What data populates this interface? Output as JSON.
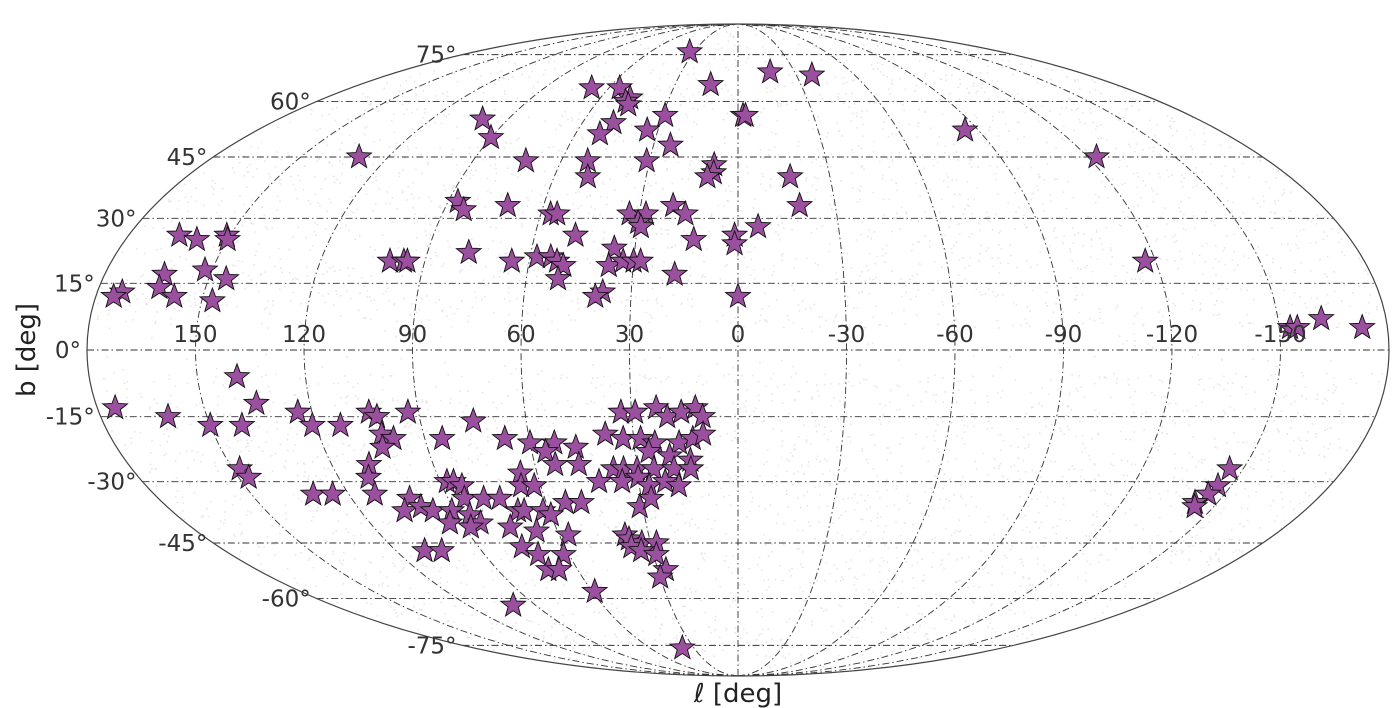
{
  "chart_data": {
    "type": "scatter",
    "projection": "mollweide",
    "xlabel": "ℓ [deg]",
    "ylabel": "b [deg]",
    "xlim": [
      180,
      -180
    ],
    "ylim": [
      -90,
      90
    ],
    "grid": true,
    "lon_ticks": [
      150,
      120,
      90,
      60,
      30,
      0,
      -30,
      -60,
      -90,
      -120,
      -150
    ],
    "lon_tick_labels": [
      "150",
      "120",
      "90",
      "60",
      "30",
      "0",
      "-30",
      "-60",
      "-90",
      "-120",
      "-150"
    ],
    "lat_ticks": [
      75,
      60,
      45,
      30,
      15,
      0,
      -15,
      -30,
      -45,
      -60,
      -75
    ],
    "lat_tick_labels": [
      "75°",
      "60°",
      "45°",
      "30°",
      "15°",
      "0°",
      "-15°",
      "-30°",
      "-45°",
      "-60°",
      "-75°"
    ],
    "colors": {
      "stars": "#9b4f9f",
      "star_edge": "#111111",
      "background_points": "#b8b8b8",
      "grid": "#333333"
    },
    "series": [
      {
        "marker": "star",
        "points": [
          [
            33,
            76
          ],
          [
            68,
            64
          ],
          [
            55,
            64
          ],
          [
            13,
            65
          ],
          [
            -17,
            69
          ],
          [
            -38,
            68
          ],
          [
            47,
            61
          ],
          [
            48,
            60
          ],
          [
            46,
            59
          ],
          [
            100,
            55
          ],
          [
            29,
            56
          ],
          [
            -2,
            56
          ],
          [
            -3,
            56
          ],
          [
            48,
            54
          ],
          [
            34,
            52
          ],
          [
            -85,
            52
          ],
          [
            90,
            50
          ],
          [
            51,
            51
          ],
          [
            24,
            48
          ],
          [
            130,
            45
          ],
          [
            72,
            44
          ],
          [
            31,
            44
          ],
          [
            51,
            44
          ],
          [
            -123,
            45
          ],
          [
            8,
            43
          ],
          [
            8,
            41
          ],
          [
            10,
            40
          ],
          [
            49,
            40
          ],
          [
            -17,
            40
          ],
          [
            -19,
            33
          ],
          [
            87,
            34
          ],
          [
            84,
            32
          ],
          [
            71,
            33
          ],
          [
            57,
            31
          ],
          [
            55,
            31
          ],
          [
            20,
            33
          ],
          [
            16,
            31
          ],
          [
            33,
            31
          ],
          [
            28,
            31
          ],
          [
            30,
            29
          ],
          [
            29,
            28
          ],
          [
            -6,
            28
          ],
          [
            48,
            26
          ],
          [
            13,
            25
          ],
          [
            1,
            26
          ],
          [
            1,
            24
          ],
          [
            165,
            26
          ],
          [
            159,
            25
          ],
          [
            151,
            26
          ],
          [
            150,
            25
          ],
          [
            36,
            23
          ],
          [
            152,
            18
          ],
          [
            78,
            22
          ],
          [
            100,
            20
          ],
          [
            96,
            20
          ],
          [
            95,
            20
          ],
          [
            65,
            20
          ],
          [
            58,
            21
          ],
          [
            54,
            21
          ],
          [
            52,
            20
          ],
          [
            50,
            19
          ],
          [
            37,
            19
          ],
          [
            33,
            20
          ],
          [
            30,
            20
          ],
          [
            28,
            20
          ],
          [
            -117,
            20
          ],
          [
            163,
            17
          ],
          [
            145,
            16
          ],
          [
            18,
            17
          ],
          [
            51,
            16
          ],
          [
            38,
            13
          ],
          [
            40,
            12
          ],
          [
            163,
            14
          ],
          [
            158,
            12
          ],
          [
            147,
            11
          ],
          [
            173,
            13
          ],
          [
            175,
            12
          ],
          [
            0,
            12
          ],
          [
            -153,
            5
          ],
          [
            -155,
            5
          ],
          [
            -162,
            7
          ],
          [
            -173,
            5
          ],
          [
            139,
            -6
          ],
          [
            135,
            -12
          ],
          [
            124,
            -14
          ],
          [
            104,
            -14
          ],
          [
            102,
            -15
          ],
          [
            93,
            -14
          ],
          [
            75,
            -16
          ],
          [
            33,
            -14
          ],
          [
            29,
            -14
          ],
          [
            23,
            -13
          ],
          [
            20,
            -15
          ],
          [
            16,
            -14
          ],
          [
            12,
            -13
          ],
          [
            10,
            -15
          ],
          [
            175,
            -13
          ],
          [
            161,
            -15
          ],
          [
            150,
            -17
          ],
          [
            141,
            -17
          ],
          [
            121,
            -17
          ],
          [
            113,
            -17
          ],
          [
            102,
            -19
          ],
          [
            99,
            -20
          ],
          [
            85,
            -20
          ],
          [
            67,
            -20
          ],
          [
            60,
            -21
          ],
          [
            53,
            -21
          ],
          [
            38,
            -19
          ],
          [
            33,
            -20
          ],
          [
            28,
            -20
          ],
          [
            24,
            -21
          ],
          [
            17,
            -21
          ],
          [
            13,
            -20
          ],
          [
            10,
            -19
          ],
          [
            103,
            -22
          ],
          [
            56,
            -23
          ],
          [
            47,
            -22
          ],
          [
            26,
            -23
          ],
          [
            20,
            -24
          ],
          [
            14,
            -25
          ],
          [
            148,
            -27
          ],
          [
            109,
            -26
          ],
          [
            65,
            -28
          ],
          [
            54,
            -26
          ],
          [
            47,
            -26
          ],
          [
            37,
            -27
          ],
          [
            34,
            -27
          ],
          [
            30,
            -27
          ],
          [
            25,
            -27
          ],
          [
            19,
            -27
          ],
          [
            14,
            -27
          ],
          [
            147,
            -29
          ],
          [
            111,
            -29
          ],
          [
            88,
            -30
          ],
          [
            86,
            -30
          ],
          [
            84,
            -31
          ],
          [
            66,
            -31
          ],
          [
            62,
            -31
          ],
          [
            42,
            -30
          ],
          [
            35,
            -30
          ],
          [
            30,
            -29
          ],
          [
            27,
            -31
          ],
          [
            22,
            -30
          ],
          [
            18,
            -31
          ],
          [
            -146,
            -27
          ],
          [
            -146,
            -31
          ],
          [
            131,
            -33
          ],
          [
            125,
            -33
          ],
          [
            112,
            -33
          ],
          [
            102,
            -34
          ],
          [
            85,
            -34
          ],
          [
            79,
            -34
          ],
          [
            74,
            -34
          ],
          [
            54,
            -35
          ],
          [
            49,
            -35
          ],
          [
            31,
            -36
          ],
          [
            27,
            -34
          ],
          [
            -145,
            -33
          ],
          [
            -143,
            -35
          ],
          [
            -144,
            -36
          ],
          [
            106,
            -37
          ],
          [
            100,
            -36
          ],
          [
            97,
            -37
          ],
          [
            91,
            -37
          ],
          [
            86,
            -38
          ],
          [
            70,
            -37
          ],
          [
            68,
            -37
          ],
          [
            62,
            -37
          ],
          [
            60,
            -38
          ],
          [
            94,
            -40
          ],
          [
            84,
            -40
          ],
          [
            75,
            -41
          ],
          [
            88,
            -41
          ],
          [
            67,
            -42
          ],
          [
            57,
            -43
          ],
          [
            38,
            -43
          ],
          [
            37,
            -44
          ],
          [
            33,
            -45
          ],
          [
            28,
            -45
          ],
          [
            37,
            -46
          ],
          [
            34,
            -47
          ],
          [
            29,
            -48
          ],
          [
            75,
            -46
          ],
          [
            71,
            -48
          ],
          [
            62,
            -48
          ],
          [
            110,
            -47
          ],
          [
            104,
            -47
          ],
          [
            71,
            -52
          ],
          [
            67,
            -52
          ],
          [
            27,
            -52
          ],
          [
            30,
            -54
          ],
          [
            59,
            -58
          ],
          [
            100,
            -62
          ],
          [
            38,
            -76
          ]
        ]
      }
    ]
  }
}
